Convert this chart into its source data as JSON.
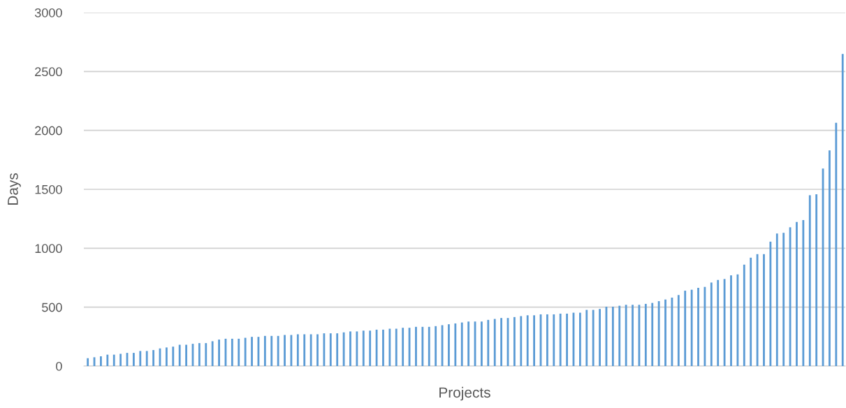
{
  "chart_data": {
    "type": "bar",
    "xlabel": "Projects",
    "ylabel": "Days",
    "categories": [
      null,
      null,
      null,
      null,
      null,
      null,
      null,
      null,
      null,
      null,
      null,
      null,
      null,
      null,
      null,
      null,
      null,
      null,
      null,
      null,
      null,
      null,
      null,
      null,
      null,
      null,
      null,
      null,
      null,
      null,
      null,
      null,
      null,
      null,
      null,
      null,
      null,
      null,
      null,
      null,
      null,
      null,
      null,
      null,
      null,
      null,
      null,
      null,
      null,
      null,
      null,
      null,
      null,
      null,
      null,
      null,
      null,
      null,
      null,
      null,
      null,
      null,
      null,
      null,
      null,
      null,
      null,
      null,
      null,
      null,
      null,
      null,
      null,
      null,
      null,
      null,
      null,
      null,
      null,
      null,
      null,
      null,
      null,
      null,
      null,
      null,
      null,
      null,
      null,
      null,
      null,
      null,
      null,
      null,
      null,
      null,
      null,
      null,
      null,
      null,
      null,
      null,
      null,
      null,
      null,
      null,
      null,
      null,
      null,
      null,
      null,
      null,
      null,
      null,
      null,
      null
    ],
    "values": [
      67,
      75,
      83,
      97,
      97,
      104,
      112,
      112,
      128,
      128,
      136,
      150,
      158,
      165,
      181,
      181,
      189,
      195,
      195,
      211,
      225,
      232,
      232,
      232,
      240,
      248,
      248,
      256,
      256,
      256,
      264,
      264,
      270,
      270,
      270,
      270,
      278,
      278,
      278,
      286,
      294,
      294,
      301,
      301,
      309,
      309,
      317,
      317,
      325,
      325,
      333,
      333,
      333,
      339,
      347,
      355,
      362,
      370,
      378,
      378,
      378,
      392,
      400,
      408,
      408,
      416,
      424,
      431,
      431,
      439,
      439,
      439,
      445,
      445,
      453,
      453,
      477,
      477,
      485,
      504,
      504,
      512,
      520,
      520,
      520,
      528,
      536,
      551,
      565,
      581,
      603,
      640,
      648,
      664,
      672,
      709,
      731,
      739,
      770,
      778,
      861,
      920,
      950,
      950,
      1056,
      1125,
      1131,
      1178,
      1223,
      1239,
      1450,
      1458,
      1676,
      1830,
      2065,
      2648
    ],
    "color": "#5b9bd5",
    "ylim": [
      0,
      3000
    ],
    "yticks": [
      0,
      500,
      1000,
      1500,
      2000,
      2500,
      3000
    ],
    "grid": "y",
    "legend": false
  }
}
